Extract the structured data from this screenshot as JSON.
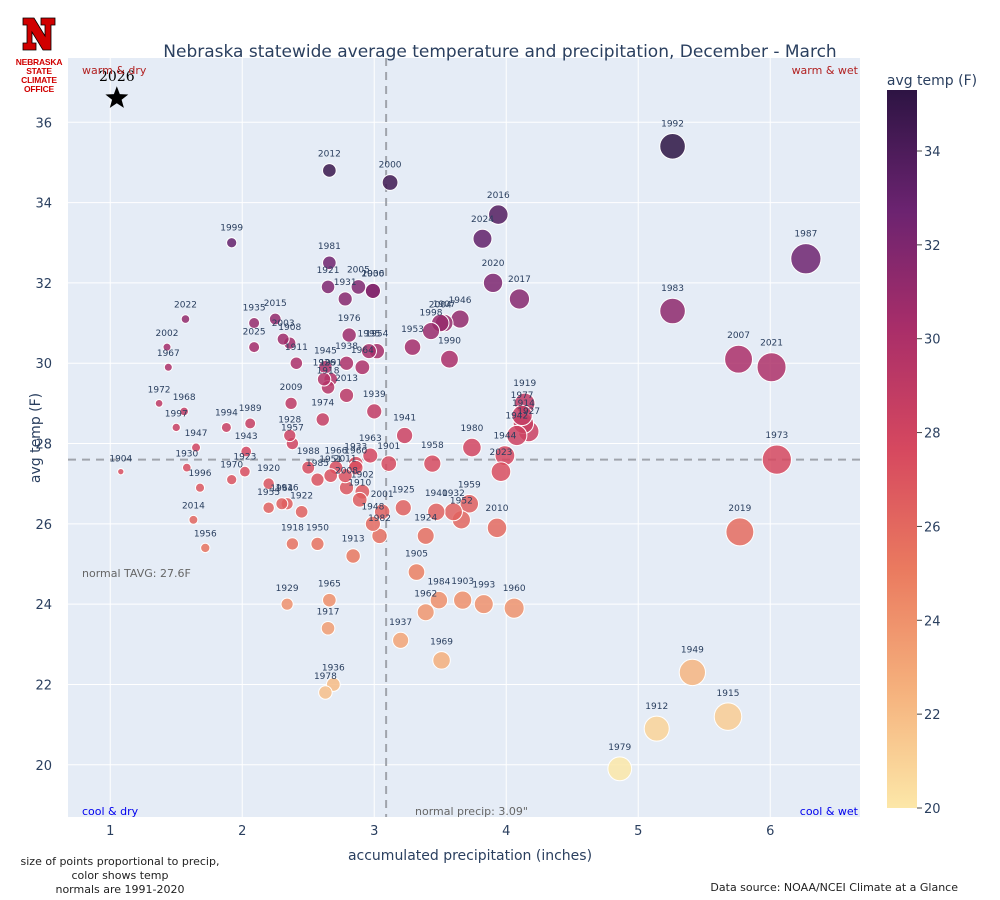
{
  "logo": {
    "letter": "N",
    "line1": "NEBRASKA STATE",
    "line2": "CLIMATE OFFICE"
  },
  "footnotes": {
    "left_lines": [
      "size of points proportional to precip,",
      "color shows temp",
      "normals are 1991-2020"
    ],
    "source": "Data source: NOAA/NCEI Climate at a Glance"
  },
  "colors": {
    "plot_bg": "#e5ecf6",
    "grid": "#ffffff",
    "quad_warm": "#b22222",
    "quad_cool": "#0000ee",
    "colorscale": [
      "#fce7a8",
      "#f5b07c",
      "#ea7a5f",
      "#d6485f",
      "#a92e69",
      "#6b2370",
      "#2d1443"
    ]
  },
  "chart_data": {
    "type": "scatter",
    "title": "Nebraska statewide average temperature and precipitation, December - March",
    "xlabel": "accumulated precipitation (inches)",
    "ylabel": "avg temp (F)",
    "xlim": [
      0.68,
      6.68
    ],
    "ylim": [
      18.7,
      37.6
    ],
    "xticks": [
      1,
      2,
      3,
      4,
      5,
      6
    ],
    "yticks": [
      20,
      22,
      24,
      26,
      28,
      30,
      32,
      34,
      36
    ],
    "grid": true,
    "size_encodes": "precip",
    "color_encodes": "avg temp",
    "colorbar": {
      "title": "avg temp (F)",
      "min": 20,
      "max": 35.3,
      "ticks": [
        20,
        22,
        24,
        26,
        28,
        30,
        32,
        34
      ]
    },
    "normals": {
      "precip": 3.09,
      "temp": 27.6,
      "precip_label": "normal precip: 3.09\"",
      "temp_label": "normal TAVG: 27.6F"
    },
    "quadrants": {
      "top_left": "warm & dry",
      "top_right": "warm & wet",
      "bottom_left": "cool & dry",
      "bottom_right": "cool & wet"
    },
    "highlight": {
      "label": "2026",
      "x": 1.05,
      "y": 36.6
    },
    "points": [
      {
        "year": "1992",
        "x": 5.26,
        "y": 35.4
      },
      {
        "year": "2012",
        "x": 2.66,
        "y": 34.8
      },
      {
        "year": "2000",
        "x": 3.12,
        "y": 34.5
      },
      {
        "year": "2016",
        "x": 3.94,
        "y": 33.7
      },
      {
        "year": "2024",
        "x": 3.82,
        "y": 33.1
      },
      {
        "year": "1999",
        "x": 1.92,
        "y": 33.0
      },
      {
        "year": "1987",
        "x": 6.27,
        "y": 32.6
      },
      {
        "year": "1981",
        "x": 2.66,
        "y": 32.5
      },
      {
        "year": "2020",
        "x": 3.9,
        "y": 32.0
      },
      {
        "year": "1921",
        "x": 2.65,
        "y": 31.9
      },
      {
        "year": "2005",
        "x": 2.88,
        "y": 31.9
      },
      {
        "year": "2006",
        "x": 2.99,
        "y": 31.8
      },
      {
        "year": "1930",
        "x": 2.99,
        "y": 31.8
      },
      {
        "year": "1931",
        "x": 2.78,
        "y": 31.6
      },
      {
        "year": "2017",
        "x": 4.1,
        "y": 31.6
      },
      {
        "year": "1983",
        "x": 5.26,
        "y": 31.3
      },
      {
        "year": "2022",
        "x": 1.57,
        "y": 31.1
      },
      {
        "year": "1935",
        "x": 2.09,
        "y": 31.0
      },
      {
        "year": "2015",
        "x": 2.25,
        "y": 31.1
      },
      {
        "year": "2003",
        "x": 2.31,
        "y": 30.6
      },
      {
        "year": "1908",
        "x": 2.36,
        "y": 30.5
      },
      {
        "year": "1998",
        "x": 3.43,
        "y": 30.8
      },
      {
        "year": "2004",
        "x": 3.5,
        "y": 31.0
      },
      {
        "year": "1946",
        "x": 3.65,
        "y": 31.1
      },
      {
        "year": "1907",
        "x": 3.53,
        "y": 31.0
      },
      {
        "year": "1953",
        "x": 3.29,
        "y": 30.4
      },
      {
        "year": "1990",
        "x": 3.57,
        "y": 30.1
      },
      {
        "year": "2002",
        "x": 1.43,
        "y": 30.4
      },
      {
        "year": "2025",
        "x": 2.09,
        "y": 30.4
      },
      {
        "year": "1911",
        "x": 2.41,
        "y": 30.0
      },
      {
        "year": "1976",
        "x": 2.81,
        "y": 30.7
      },
      {
        "year": "1995",
        "x": 2.96,
        "y": 30.3
      },
      {
        "year": "1954",
        "x": 3.02,
        "y": 30.3
      },
      {
        "year": "1964",
        "x": 2.91,
        "y": 29.9
      },
      {
        "year": "1945",
        "x": 2.63,
        "y": 29.9
      },
      {
        "year": "1938",
        "x": 2.79,
        "y": 30.0
      },
      {
        "year": "1967",
        "x": 1.44,
        "y": 29.9
      },
      {
        "year": "2007",
        "x": 5.76,
        "y": 30.1
      },
      {
        "year": "2021",
        "x": 6.01,
        "y": 29.9
      },
      {
        "year": "1926",
        "x": 2.62,
        "y": 29.6
      },
      {
        "year": "1991",
        "x": 2.67,
        "y": 29.6
      },
      {
        "year": "2013",
        "x": 2.79,
        "y": 29.2
      },
      {
        "year": "1918",
        "x": 2.65,
        "y": 29.4
      },
      {
        "year": "1972",
        "x": 1.37,
        "y": 29.0
      },
      {
        "year": "1968",
        "x": 1.56,
        "y": 28.8
      },
      {
        "year": "2009",
        "x": 2.37,
        "y": 29.0
      },
      {
        "year": "1974",
        "x": 2.61,
        "y": 28.6
      },
      {
        "year": "1939",
        "x": 3.0,
        "y": 28.8
      },
      {
        "year": "1919",
        "x": 4.14,
        "y": 29.0
      },
      {
        "year": "1977",
        "x": 4.12,
        "y": 28.7
      },
      {
        "year": "1927",
        "x": 4.17,
        "y": 28.3
      },
      {
        "year": "1914",
        "x": 4.13,
        "y": 28.5
      },
      {
        "year": "1942",
        "x": 4.08,
        "y": 28.2
      },
      {
        "year": "1994",
        "x": 1.88,
        "y": 28.4
      },
      {
        "year": "1989",
        "x": 2.06,
        "y": 28.5
      },
      {
        "year": "1997",
        "x": 1.5,
        "y": 28.4
      },
      {
        "year": "1928",
        "x": 2.36,
        "y": 28.2
      },
      {
        "year": "1957",
        "x": 2.38,
        "y": 28.0
      },
      {
        "year": "1943",
        "x": 2.03,
        "y": 27.8
      },
      {
        "year": "1947",
        "x": 1.65,
        "y": 27.9
      },
      {
        "year": "1941",
        "x": 3.23,
        "y": 28.2
      },
      {
        "year": "1980",
        "x": 3.74,
        "y": 27.9
      },
      {
        "year": "1973",
        "x": 6.05,
        "y": 27.6
      },
      {
        "year": "1944",
        "x": 3.99,
        "y": 27.7
      },
      {
        "year": "1904",
        "x": 1.08,
        "y": 27.3
      },
      {
        "year": "1930b",
        "label": "1930",
        "x": 1.58,
        "y": 27.4
      },
      {
        "year": "1963",
        "x": 2.97,
        "y": 27.7
      },
      {
        "year": "1933",
        "x": 2.86,
        "y": 27.5
      },
      {
        "year": "1901",
        "x": 3.11,
        "y": 27.5
      },
      {
        "year": "1958",
        "x": 3.44,
        "y": 27.5
      },
      {
        "year": "2023",
        "x": 3.96,
        "y": 27.3
      },
      {
        "year": "1923",
        "x": 2.02,
        "y": 27.3
      },
      {
        "year": "1970",
        "x": 1.92,
        "y": 27.1
      },
      {
        "year": "1996",
        "x": 1.68,
        "y": 26.9
      },
      {
        "year": "1988",
        "x": 2.5,
        "y": 27.4
      },
      {
        "year": "1966",
        "x": 2.71,
        "y": 27.4
      },
      {
        "year": "1960b",
        "label": "1960",
        "x": 2.86,
        "y": 27.4
      },
      {
        "year": "1985",
        "x": 2.57,
        "y": 27.1
      },
      {
        "year": "1951",
        "x": 2.67,
        "y": 27.2
      },
      {
        "year": "2011",
        "x": 2.78,
        "y": 27.2
      },
      {
        "year": "1920",
        "x": 2.2,
        "y": 27.0
      },
      {
        "year": "2008",
        "x": 2.79,
        "y": 26.9
      },
      {
        "year": "1902",
        "x": 2.91,
        "y": 26.8
      },
      {
        "year": "2019",
        "x": 5.77,
        "y": 25.8
      },
      {
        "year": "1955",
        "x": 2.2,
        "y": 26.4
      },
      {
        "year": "1916",
        "x": 2.34,
        "y": 26.5
      },
      {
        "year": "1964b",
        "label": "1964",
        "x": 2.3,
        "y": 26.5
      },
      {
        "year": "1910",
        "x": 2.89,
        "y": 26.6
      },
      {
        "year": "1959",
        "x": 3.72,
        "y": 26.5
      },
      {
        "year": "2010",
        "x": 3.93,
        "y": 25.9
      },
      {
        "year": "1940",
        "x": 3.47,
        "y": 26.3
      },
      {
        "year": "1932",
        "x": 3.6,
        "y": 26.3
      },
      {
        "year": "1922",
        "x": 2.45,
        "y": 26.3
      },
      {
        "year": "2001",
        "x": 3.06,
        "y": 26.3
      },
      {
        "year": "1925",
        "x": 3.22,
        "y": 26.4
      },
      {
        "year": "1952",
        "x": 3.66,
        "y": 26.1
      },
      {
        "year": "2014",
        "x": 1.63,
        "y": 26.1
      },
      {
        "year": "1948",
        "x": 2.99,
        "y": 26.0
      },
      {
        "year": "1924",
        "x": 3.39,
        "y": 25.7
      },
      {
        "year": "1982",
        "x": 3.04,
        "y": 25.7
      },
      {
        "year": "1918b",
        "label": "1918",
        "x": 2.38,
        "y": 25.5
      },
      {
        "year": "1950",
        "x": 2.57,
        "y": 25.5
      },
      {
        "year": "1913",
        "x": 2.84,
        "y": 25.2
      },
      {
        "year": "1956",
        "x": 1.72,
        "y": 25.4
      },
      {
        "year": "1905",
        "x": 3.32,
        "y": 24.8
      },
      {
        "year": "1984",
        "x": 3.49,
        "y": 24.1
      },
      {
        "year": "1903",
        "x": 3.67,
        "y": 24.1
      },
      {
        "year": "1993",
        "x": 3.83,
        "y": 24.0
      },
      {
        "year": "1962",
        "x": 3.39,
        "y": 23.8
      },
      {
        "year": "1960",
        "x": 4.06,
        "y": 23.9
      },
      {
        "year": "1929",
        "x": 2.34,
        "y": 24.0
      },
      {
        "year": "1965",
        "x": 2.66,
        "y": 24.1
      },
      {
        "year": "1917",
        "x": 2.65,
        "y": 23.4
      },
      {
        "year": "1937",
        "x": 3.2,
        "y": 23.1
      },
      {
        "year": "1969",
        "x": 3.51,
        "y": 22.6
      },
      {
        "year": "1949",
        "x": 5.41,
        "y": 22.3
      },
      {
        "year": "1936",
        "x": 2.69,
        "y": 22.0
      },
      {
        "year": "1978",
        "x": 2.63,
        "y": 21.8
      },
      {
        "year": "1915",
        "x": 5.68,
        "y": 21.2
      },
      {
        "year": "1912",
        "x": 5.14,
        "y": 20.9
      },
      {
        "year": "1979",
        "x": 4.86,
        "y": 19.9
      }
    ]
  }
}
